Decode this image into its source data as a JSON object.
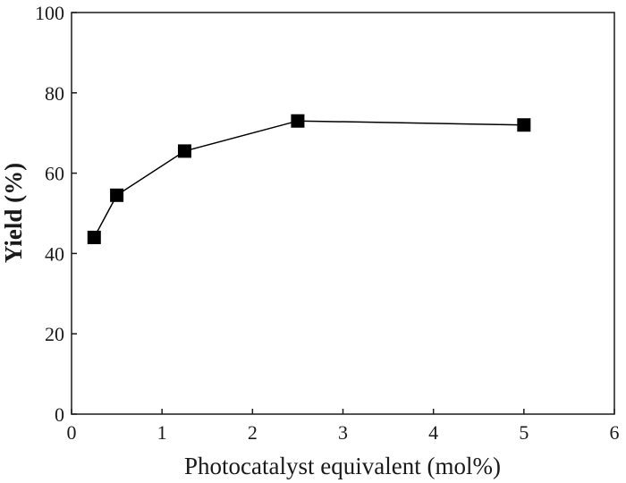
{
  "chart_data": {
    "type": "line",
    "title": "",
    "xlabel": "Photocatalyst equivalent (mol%)",
    "ylabel": "Yield (%)",
    "xlim": [
      0,
      6
    ],
    "ylim": [
      0,
      100
    ],
    "x_ticks": [
      "0",
      "1",
      "2",
      "3",
      "4",
      "5",
      "6"
    ],
    "y_ticks": [
      "0",
      "20",
      "40",
      "60",
      "80",
      "100"
    ],
    "grid": false,
    "legend": "none",
    "series": [
      {
        "marker": "square",
        "color": "#000000",
        "x": [
          0.25,
          0.5,
          1.25,
          2.5,
          5
        ],
        "y": [
          44,
          54.5,
          65.5,
          73,
          72
        ]
      }
    ]
  }
}
